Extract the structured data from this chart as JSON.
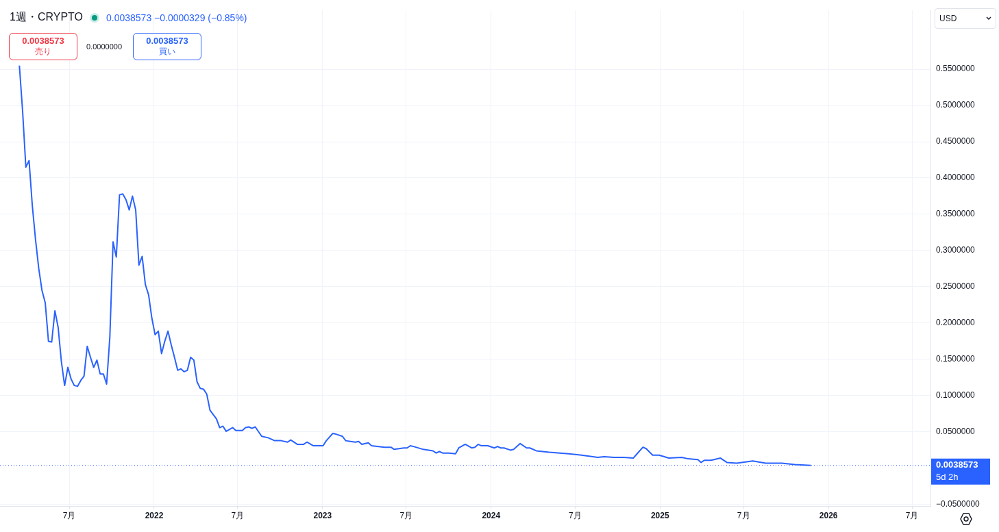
{
  "chart_data": {
    "type": "line",
    "title": "1週・CRYPTO",
    "subtitle": "0.0038573 −0.0000329 (−0.85%)",
    "x": [
      "2021-03-15",
      "2021-03-22",
      "2021-03-29",
      "2021-04-05",
      "2021-04-12",
      "2021-04-19",
      "2021-04-26",
      "2021-05-03",
      "2021-05-10",
      "2021-05-17",
      "2021-05-24",
      "2021-05-31",
      "2021-06-07",
      "2021-06-14",
      "2021-06-21",
      "2021-06-28",
      "2021-07-05",
      "2021-07-12",
      "2021-07-19",
      "2021-07-26",
      "2021-08-02",
      "2021-08-09",
      "2021-08-16",
      "2021-08-23",
      "2021-08-30",
      "2021-09-06",
      "2021-09-13",
      "2021-09-20",
      "2021-09-27",
      "2021-10-04",
      "2021-10-11",
      "2021-10-18",
      "2021-10-25",
      "2021-11-01",
      "2021-11-08",
      "2021-11-15",
      "2021-11-22",
      "2021-11-29",
      "2021-12-06",
      "2021-12-13",
      "2021-12-20",
      "2021-12-27",
      "2022-01-03",
      "2022-01-10",
      "2022-01-17",
      "2022-01-24",
      "2022-01-31",
      "2022-02-07",
      "2022-02-14",
      "2022-02-21",
      "2022-02-28",
      "2022-03-07",
      "2022-03-14",
      "2022-03-21",
      "2022-03-28",
      "2022-04-04",
      "2022-04-11",
      "2022-04-18",
      "2022-04-25",
      "2022-05-02",
      "2022-05-16",
      "2022-05-23",
      "2022-05-30",
      "2022-06-06",
      "2022-06-20",
      "2022-06-27",
      "2022-07-11",
      "2022-07-18",
      "2022-07-25",
      "2022-08-01",
      "2022-08-08",
      "2022-08-22",
      "2022-09-05",
      "2022-09-19",
      "2022-10-03",
      "2022-10-17",
      "2022-10-24",
      "2022-11-07",
      "2022-11-21",
      "2022-11-28",
      "2022-12-12",
      "2023-01-02",
      "2023-01-09",
      "2023-01-23",
      "2023-01-30",
      "2023-02-13",
      "2023-02-20",
      "2023-03-13",
      "2023-03-20",
      "2023-03-27",
      "2023-04-10",
      "2023-04-17",
      "2023-05-15",
      "2023-05-29",
      "2023-06-05",
      "2023-06-26",
      "2023-07-03",
      "2023-07-10",
      "2023-07-17",
      "2023-08-07",
      "2023-08-28",
      "2023-09-04",
      "2023-09-11",
      "2023-09-18",
      "2023-10-02",
      "2023-10-16",
      "2023-10-23",
      "2023-11-06",
      "2023-11-20",
      "2023-11-27",
      "2023-12-04",
      "2023-12-11",
      "2023-12-25",
      "2024-01-08",
      "2024-01-15",
      "2024-01-22",
      "2024-01-29",
      "2024-02-12",
      "2024-02-19",
      "2024-03-04",
      "2024-03-18",
      "2024-03-25",
      "2024-04-08",
      "2024-05-06",
      "2024-06-17",
      "2024-07-15",
      "2024-08-19",
      "2024-09-02",
      "2024-09-23",
      "2024-10-14",
      "2024-11-04",
      "2024-11-11",
      "2024-11-25",
      "2024-12-02",
      "2024-12-16",
      "2024-12-30",
      "2025-01-20",
      "2025-02-17",
      "2025-03-03",
      "2025-03-24",
      "2025-03-31",
      "2025-04-07",
      "2025-04-21",
      "2025-04-28",
      "2025-05-12",
      "2025-05-26",
      "2025-06-16",
      "2025-07-21",
      "2025-08-18",
      "2025-09-22",
      "2025-10-20",
      "2025-11-24"
    ],
    "series": [
      {
        "color": "#2962ff",
        "values": [
          0.555,
          0.492,
          0.415,
          0.424,
          0.362,
          0.315,
          0.275,
          0.245,
          0.228,
          0.175,
          0.174,
          0.217,
          0.194,
          0.147,
          0.114,
          0.139,
          0.123,
          0.114,
          0.113,
          0.121,
          0.127,
          0.168,
          0.153,
          0.139,
          0.149,
          0.13,
          0.13,
          0.116,
          0.181,
          0.312,
          0.291,
          0.377,
          0.378,
          0.37,
          0.356,
          0.375,
          0.356,
          0.28,
          0.292,
          0.253,
          0.239,
          0.207,
          0.184,
          0.189,
          0.158,
          0.175,
          0.189,
          0.17,
          0.153,
          0.135,
          0.137,
          0.133,
          0.135,
          0.153,
          0.149,
          0.119,
          0.11,
          0.109,
          0.102,
          0.08,
          0.068,
          0.056,
          0.058,
          0.051,
          0.056,
          0.052,
          0.052,
          0.056,
          0.057,
          0.055,
          0.057,
          0.044,
          0.042,
          0.038,
          0.038,
          0.036,
          0.039,
          0.033,
          0.033,
          0.036,
          0.031,
          0.031,
          0.038,
          0.048,
          0.047,
          0.044,
          0.038,
          0.036,
          0.037,
          0.033,
          0.035,
          0.031,
          0.029,
          0.029,
          0.026,
          0.028,
          0.028,
          0.031,
          0.03,
          0.026,
          0.024,
          0.021,
          0.023,
          0.021,
          0.021,
          0.02,
          0.028,
          0.033,
          0.028,
          0.029,
          0.033,
          0.031,
          0.031,
          0.028,
          0.03,
          0.028,
          0.028,
          0.025,
          0.026,
          0.034,
          0.028,
          0.028,
          0.024,
          0.022,
          0.02,
          0.018,
          0.015,
          0.016,
          0.015,
          0.015,
          0.014,
          0.019,
          0.029,
          0.027,
          0.018,
          0.018,
          0.014,
          0.015,
          0.013,
          0.012,
          0.008,
          0.011,
          0.011,
          0.012,
          0.014,
          0.008,
          0.007,
          0.01,
          0.007,
          0.007,
          0.005,
          0.0038573
        ]
      }
    ],
    "xlim": [
      "2021-02-01",
      "2026-08-10"
    ],
    "xticks": [
      {
        "value": "2021-07-01",
        "label": "7月"
      },
      {
        "value": "2022-01-01",
        "label": "2022"
      },
      {
        "value": "2022-07-01",
        "label": "7月"
      },
      {
        "value": "2023-01-01",
        "label": "2023"
      },
      {
        "value": "2023-07-01",
        "label": "7月"
      },
      {
        "value": "2024-01-01",
        "label": "2024"
      },
      {
        "value": "2024-07-01",
        "label": "7月"
      },
      {
        "value": "2025-01-01",
        "label": "2025"
      },
      {
        "value": "2025-07-01",
        "label": "7月"
      },
      {
        "value": "2026-01-01",
        "label": "2026"
      },
      {
        "value": "2026-07-01",
        "label": "7月"
      }
    ],
    "ylim": [
      -0.052,
      0.631
    ],
    "yticks": [
      {
        "value": -0.05,
        "label": "−0.0500000"
      },
      {
        "value": 0.05,
        "label": "0.0500000"
      },
      {
        "value": 0.1,
        "label": "0.1000000"
      },
      {
        "value": 0.15,
        "label": "0.1500000"
      },
      {
        "value": 0.2,
        "label": "0.2000000"
      },
      {
        "value": 0.25,
        "label": "0.2500000"
      },
      {
        "value": 0.3,
        "label": "0.3000000"
      },
      {
        "value": 0.35,
        "label": "0.3500000"
      },
      {
        "value": 0.4,
        "label": "0.4000000"
      },
      {
        "value": 0.45,
        "label": "0.4500000"
      },
      {
        "value": 0.5,
        "label": "0.5000000"
      },
      {
        "value": 0.55,
        "label": "0.5500000"
      }
    ],
    "grid": true,
    "ref_lines": [
      {
        "axis": "y",
        "value": 0.0038573,
        "label": "0.0038573",
        "color": "#2962ff",
        "line_style": "dotted"
      }
    ],
    "annotations": [
      "0.0038573",
      "売り",
      "0.0000000",
      "0.0038573",
      "買い",
      "USD",
      "5d 2h"
    ]
  }
}
